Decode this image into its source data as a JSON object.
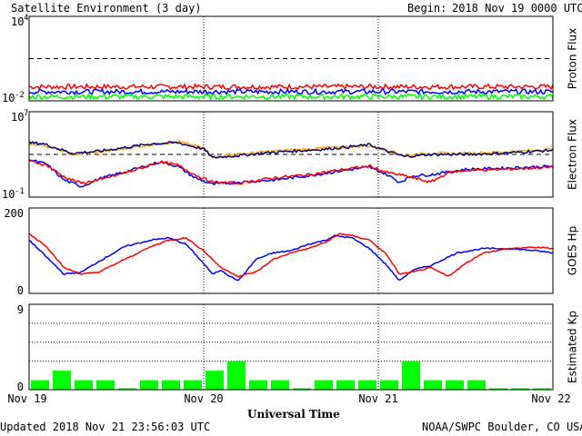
{
  "header": {
    "title": "Satellite Environment (3 day)",
    "begin_label": "Begin:",
    "begin_value": "2018 Nov 19 0000 UTC"
  },
  "footer": {
    "updated": "Updated 2018 Nov 21 23:56:03 UTC",
    "credit": "NOAA/SWPC Boulder, CO USA"
  },
  "colors": {
    "red": "#ff0000",
    "blue": "#0000ff",
    "green": "#00ff00",
    "orange": "#ffa500",
    "purple": "#800080",
    "navy": "#000080"
  },
  "chart_data": {
    "type": "multi-panel",
    "xlabel": "Universal Time",
    "x_ticks": [
      "Nov 19",
      "Nov 20",
      "Nov 21",
      "Nov 22"
    ],
    "x_range_days": [
      0,
      3
    ],
    "panels": [
      {
        "name": "proton",
        "type": "line",
        "ylabel": "Proton Flux",
        "scale": "log",
        "y_tick_labels": [
          {
            "base": "10",
            "exp": "4"
          },
          {
            "base": "10",
            "exp": "-2"
          }
        ],
        "ylim_exp": [
          -2,
          4
        ],
        "threshold_exp": 1,
        "series": [
          {
            "color": "red",
            "level_exp": -1.0
          },
          {
            "color": "blue",
            "level_exp": -1.35
          },
          {
            "color": "green",
            "level_exp": -1.7
          }
        ]
      },
      {
        "name": "electron",
        "type": "line",
        "ylabel": "Electron Flux",
        "scale": "log",
        "y_tick_labels": [
          {
            "base": "10",
            "exp": "7"
          },
          {
            "base": "10",
            "exp": "-1"
          }
        ],
        "ylim_exp": [
          -1,
          7
        ],
        "threshold_exp": 3,
        "series": [
          {
            "color": "orange",
            "points": [
              [
                0,
                4.0
              ],
              [
                0.08,
                3.9
              ],
              [
                0.25,
                3.0
              ],
              [
                0.4,
                3.2
              ],
              [
                0.7,
                3.9
              ],
              [
                0.85,
                4.2
              ],
              [
                1.0,
                3.6
              ],
              [
                1.05,
                2.8
              ],
              [
                1.2,
                3.0
              ],
              [
                1.4,
                3.3
              ],
              [
                1.7,
                3.6
              ],
              [
                1.95,
                3.8
              ],
              [
                2.05,
                3.4
              ],
              [
                2.15,
                2.9
              ],
              [
                2.3,
                3.1
              ],
              [
                2.5,
                3.1
              ],
              [
                2.7,
                3.2
              ],
              [
                3.0,
                3.5
              ]
            ]
          },
          {
            "color": "navy",
            "points": [
              [
                0,
                4.1
              ],
              [
                0.08,
                4.0
              ],
              [
                0.25,
                3.1
              ],
              [
                0.4,
                3.3
              ],
              [
                0.7,
                4.0
              ],
              [
                0.85,
                4.1
              ],
              [
                1.0,
                3.5
              ],
              [
                1.05,
                2.7
              ],
              [
                1.2,
                2.9
              ],
              [
                1.4,
                3.2
              ],
              [
                1.7,
                3.5
              ],
              [
                1.95,
                3.9
              ],
              [
                2.05,
                3.3
              ],
              [
                2.15,
                2.8
              ],
              [
                2.3,
                3.0
              ],
              [
                2.5,
                3.0
              ],
              [
                2.7,
                3.1
              ],
              [
                3.0,
                3.4
              ]
            ]
          },
          {
            "color": "blue",
            "points": [
              [
                0,
                2.5
              ],
              [
                0.1,
                2.1
              ],
              [
                0.2,
                0.6
              ],
              [
                0.3,
                0.0
              ],
              [
                0.4,
                0.7
              ],
              [
                0.6,
                1.6
              ],
              [
                0.75,
                2.3
              ],
              [
                0.85,
                1.9
              ],
              [
                0.95,
                0.8
              ],
              [
                1.05,
                0.2
              ],
              [
                1.2,
                0.4
              ],
              [
                1.4,
                0.6
              ],
              [
                1.6,
                1.0
              ],
              [
                1.8,
                1.5
              ],
              [
                1.95,
                1.8
              ],
              [
                2.05,
                1.1
              ],
              [
                2.12,
                0.4
              ],
              [
                2.2,
                1.0
              ],
              [
                2.3,
                1.1
              ],
              [
                2.5,
                1.6
              ],
              [
                2.7,
                1.7
              ],
              [
                3.0,
                1.9
              ]
            ]
          },
          {
            "color": "red",
            "points": [
              [
                0,
                2.4
              ],
              [
                0.1,
                2.0
              ],
              [
                0.2,
                0.9
              ],
              [
                0.3,
                0.3
              ],
              [
                0.4,
                0.6
              ],
              [
                0.6,
                1.5
              ],
              [
                0.75,
                2.3
              ],
              [
                0.85,
                2.0
              ],
              [
                0.95,
                1.1
              ],
              [
                1.05,
                0.4
              ],
              [
                1.2,
                0.3
              ],
              [
                1.4,
                0.8
              ],
              [
                1.6,
                1.1
              ],
              [
                1.8,
                1.6
              ],
              [
                1.95,
                1.9
              ],
              [
                2.05,
                1.3
              ],
              [
                2.15,
                1.0
              ],
              [
                2.3,
                0.4
              ],
              [
                2.4,
                1.3
              ],
              [
                2.5,
                1.5
              ],
              [
                2.7,
                1.6
              ],
              [
                3.0,
                1.8
              ]
            ]
          }
        ]
      },
      {
        "name": "hp",
        "type": "line",
        "ylabel": "GOES Hp",
        "scale": "linear",
        "y_tick_labels": [
          "200",
          "0"
        ],
        "ylim": [
          0,
          200
        ],
        "series": [
          {
            "color": "blue",
            "points": [
              [
                0,
                125
              ],
              [
                0.1,
                85
              ],
              [
                0.2,
                45
              ],
              [
                0.3,
                50
              ],
              [
                0.4,
                75
              ],
              [
                0.55,
                110
              ],
              [
                0.7,
                125
              ],
              [
                0.8,
                130
              ],
              [
                0.9,
                115
              ],
              [
                1.0,
                70
              ],
              [
                1.05,
                45
              ],
              [
                1.1,
                55
              ],
              [
                1.15,
                40
              ],
              [
                1.2,
                30
              ],
              [
                1.3,
                80
              ],
              [
                1.4,
                95
              ],
              [
                1.5,
                100
              ],
              [
                1.6,
                115
              ],
              [
                1.7,
                125
              ],
              [
                1.75,
                135
              ],
              [
                1.85,
                130
              ],
              [
                1.95,
                105
              ],
              [
                2.05,
                65
              ],
              [
                2.12,
                30
              ],
              [
                2.2,
                55
              ],
              [
                2.3,
                65
              ],
              [
                2.45,
                95
              ],
              [
                2.6,
                105
              ],
              [
                2.75,
                105
              ],
              [
                2.9,
                100
              ],
              [
                3.0,
                95
              ]
            ]
          },
          {
            "color": "red",
            "points": [
              [
                0,
                140
              ],
              [
                0.1,
                110
              ],
              [
                0.2,
                60
              ],
              [
                0.3,
                45
              ],
              [
                0.4,
                50
              ],
              [
                0.55,
                80
              ],
              [
                0.7,
                110
              ],
              [
                0.8,
                125
              ],
              [
                0.9,
                130
              ],
              [
                1.0,
                100
              ],
              [
                1.05,
                80
              ],
              [
                1.1,
                60
              ],
              [
                1.15,
                50
              ],
              [
                1.2,
                40
              ],
              [
                1.3,
                50
              ],
              [
                1.4,
                80
              ],
              [
                1.5,
                95
              ],
              [
                1.6,
                105
              ],
              [
                1.7,
                120
              ],
              [
                1.78,
                140
              ],
              [
                1.85,
                135
              ],
              [
                1.95,
                125
              ],
              [
                2.05,
                90
              ],
              [
                2.12,
                45
              ],
              [
                2.2,
                50
              ],
              [
                2.3,
                60
              ],
              [
                2.4,
                40
              ],
              [
                2.5,
                70
              ],
              [
                2.6,
                95
              ],
              [
                2.75,
                105
              ],
              [
                2.9,
                108
              ],
              [
                3.0,
                105
              ]
            ]
          }
        ]
      },
      {
        "name": "kp",
        "type": "bar",
        "ylabel": "Estimated Kp",
        "scale": "linear",
        "y_tick_labels": [
          "9",
          "0"
        ],
        "ylim": [
          0,
          9
        ],
        "bar_color": "green",
        "values": [
          1,
          2,
          1,
          1,
          0,
          1,
          1,
          1,
          2,
          3,
          1,
          1,
          0,
          1,
          1,
          1,
          1,
          3,
          1,
          1,
          1,
          0,
          0,
          0
        ]
      }
    ]
  }
}
